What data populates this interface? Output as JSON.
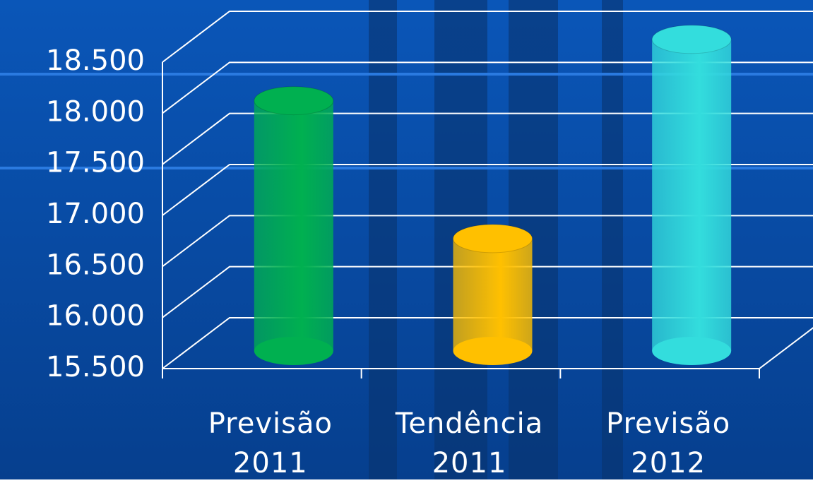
{
  "chart_data": {
    "type": "bar",
    "categories": [
      "Previsão 2011",
      "Tendência 2011",
      "Previsão 2012"
    ],
    "values": [
      17950,
      16600,
      18550
    ],
    "colors": [
      "#00b050",
      "#ffc000",
      "#33dddd"
    ],
    "ylim": [
      15500,
      18500
    ],
    "yticks": [
      {
        "value": 15500,
        "label": "15.500"
      },
      {
        "value": 16000,
        "label": "16.000"
      },
      {
        "value": 16500,
        "label": "16.500"
      },
      {
        "value": 17000,
        "label": "17.000"
      },
      {
        "value": 17500,
        "label": "17.500"
      },
      {
        "value": 18000,
        "label": "18.000"
      },
      {
        "value": 18500,
        "label": "18.500"
      }
    ],
    "grid": true
  }
}
